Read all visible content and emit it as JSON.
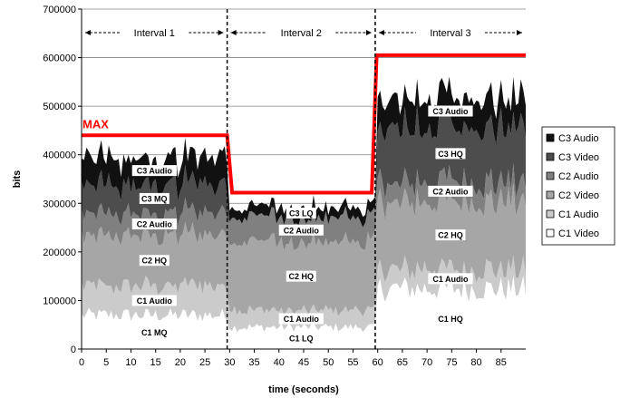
{
  "chart_data": {
    "type": "area",
    "xlabel": "time (seconds)",
    "ylabel": "bits",
    "xlim": [
      0,
      90
    ],
    "ylim": [
      0,
      700000
    ],
    "x_ticks": [
      0,
      5,
      10,
      15,
      20,
      25,
      30,
      35,
      40,
      45,
      50,
      55,
      60,
      65,
      70,
      75,
      80,
      85
    ],
    "y_ticks": [
      0,
      100000,
      200000,
      300000,
      400000,
      500000,
      600000,
      700000
    ],
    "grid": "horizontal",
    "legend_position": "right",
    "legend": [
      "C3 Audio",
      "C3 Video",
      "C2 Audio",
      "C2 Video",
      "C1 Audio",
      "C1 Video"
    ],
    "intervals": [
      {
        "label": "Interval 1",
        "start": 0,
        "end": 29.5
      },
      {
        "label": "Interval 2",
        "start": 29.5,
        "end": 59.5
      },
      {
        "label": "Interval 3",
        "start": 59.5,
        "end": 90
      }
    ],
    "max_label": "MAX",
    "max_line": {
      "x": [
        0,
        29.5,
        30.5,
        58.8,
        59.8,
        90
      ],
      "y": [
        440000,
        440000,
        322000,
        322000,
        605000,
        605000
      ]
    },
    "series": [
      {
        "name": "C1 Video",
        "color": "#ffffff",
        "interval_labels": [
          "C1 MQ",
          "C1 LQ",
          "C1 HQ"
        ],
        "interval_means": [
          70000,
          45000,
          125000
        ]
      },
      {
        "name": "C1 Audio",
        "color": "#cbcbcb",
        "interval_labels": [
          "C1 Audio",
          "C1 Audio",
          "C1 Audio"
        ],
        "interval_means": [
          60000,
          35000,
          40000
        ]
      },
      {
        "name": "C2 Video",
        "color": "#a6a6a6",
        "interval_labels": [
          "C2 HQ",
          "C2 HQ",
          "C2 HQ"
        ],
        "interval_means": [
          105000,
          140000,
          140000
        ]
      },
      {
        "name": "C2 Audio",
        "color": "#808080",
        "interval_labels": [
          "C2 Audio",
          "C2 Audio",
          "C2 Audio"
        ],
        "interval_means": [
          45000,
          50000,
          40000
        ]
      },
      {
        "name": "C3 Video",
        "color": "#4d4d4d",
        "interval_labels": [
          "C3 MQ",
          null,
          "C3 HQ"
        ],
        "interval_means": [
          60000,
          0,
          115000
        ]
      },
      {
        "name": "C3 Audio",
        "color": "#111111",
        "interval_labels": [
          "C3 Audio",
          "C3 LQ",
          "C3 Audio"
        ],
        "interval_means": [
          55000,
          20000,
          60000
        ]
      }
    ]
  }
}
